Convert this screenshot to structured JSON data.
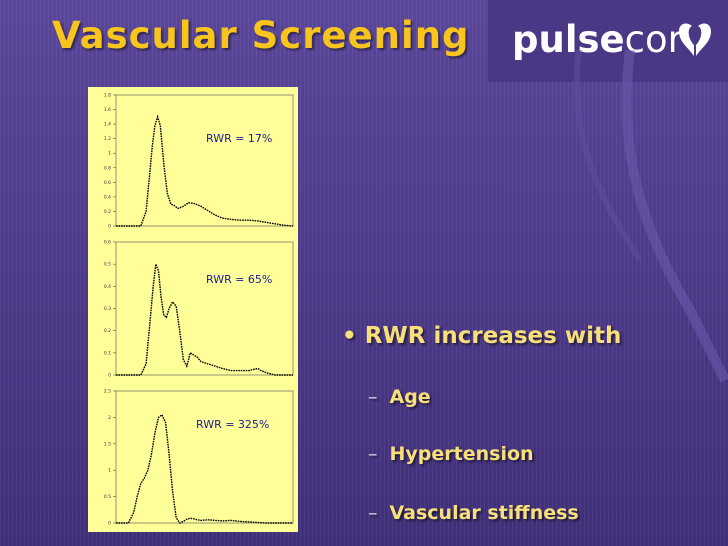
{
  "title": "Vascular Screening",
  "logo": {
    "bold": "pulse",
    "normal": "cor",
    "icon": "heart-leaf-icon"
  },
  "colors": {
    "background": "#4a3786",
    "title": "#f7c51c",
    "bullet": "#f7e07a",
    "chart_bg": "#ffff99",
    "line": "#000000"
  },
  "bullets": {
    "main": "RWR increases with",
    "marker": "•",
    "dash": "–",
    "items": [
      "Age",
      "Hypertension",
      "Vascular stiffness"
    ]
  },
  "chart_data": [
    {
      "type": "line",
      "annotation": "RWR = 17%",
      "ylim": [
        0,
        1.8
      ],
      "yticks": [
        "0",
        "0.2",
        "0.4",
        "0.6",
        "0.8",
        "1",
        "1.2",
        "1.4",
        "1.6",
        "1.8"
      ],
      "series": [
        {
          "x": [
            0,
            0.08,
            0.14,
            0.17,
            0.19,
            0.205,
            0.22,
            0.235,
            0.25,
            0.27,
            0.29,
            0.31,
            0.33,
            0.35,
            0.38,
            0.41,
            0.44,
            0.48,
            0.52,
            0.56,
            0.6,
            0.65,
            0.7,
            0.75,
            0.8,
            0.85,
            0.9,
            0.95,
            1
          ],
          "y": [
            0,
            0,
            0,
            0.2,
            0.7,
            1.1,
            1.38,
            1.5,
            1.38,
            0.85,
            0.45,
            0.3,
            0.28,
            0.24,
            0.27,
            0.32,
            0.31,
            0.27,
            0.21,
            0.15,
            0.11,
            0.09,
            0.08,
            0.08,
            0.07,
            0.05,
            0.03,
            0.01,
            0
          ]
        }
      ]
    },
    {
      "type": "line",
      "annotation": "RWR = 65%",
      "ylim": [
        0,
        0.6
      ],
      "yticks": [
        "0",
        "0.1",
        "0.2",
        "0.3",
        "0.4",
        "0.5",
        "0.6"
      ],
      "series": [
        {
          "x": [
            0,
            0.08,
            0.14,
            0.17,
            0.19,
            0.21,
            0.225,
            0.24,
            0.255,
            0.27,
            0.285,
            0.3,
            0.32,
            0.34,
            0.36,
            0.38,
            0.4,
            0.41,
            0.42,
            0.44,
            0.46,
            0.48,
            0.52,
            0.56,
            0.6,
            0.65,
            0.7,
            0.75,
            0.8,
            0.82,
            0.85,
            0.9,
            0.95,
            1
          ],
          "y": [
            0,
            0,
            0,
            0.05,
            0.22,
            0.4,
            0.5,
            0.47,
            0.35,
            0.27,
            0.26,
            0.3,
            0.33,
            0.31,
            0.2,
            0.07,
            0.04,
            0.07,
            0.1,
            0.09,
            0.08,
            0.06,
            0.05,
            0.04,
            0.03,
            0.02,
            0.02,
            0.02,
            0.03,
            0.02,
            0.01,
            0,
            0,
            0
          ]
        }
      ]
    },
    {
      "type": "line",
      "annotation": "RWR = 325%",
      "ylim": [
        0,
        2.5
      ],
      "yticks": [
        "0",
        "0.5",
        "1",
        "1.5",
        "2",
        "2.5"
      ],
      "series": [
        {
          "x": [
            0,
            0.07,
            0.1,
            0.12,
            0.14,
            0.16,
            0.18,
            0.2,
            0.22,
            0.24,
            0.26,
            0.28,
            0.3,
            0.32,
            0.34,
            0.36,
            0.38,
            0.4,
            0.42,
            0.44,
            0.46,
            0.48,
            0.52,
            0.56,
            0.6,
            0.65,
            0.7,
            0.75,
            0.8,
            0.85,
            0.9,
            0.95,
            1
          ],
          "y": [
            0,
            0,
            0.2,
            0.5,
            0.75,
            0.85,
            1,
            1.3,
            1.7,
            2,
            2.05,
            1.9,
            1.3,
            0.6,
            0.1,
            0,
            0.03,
            0.07,
            0.09,
            0.08,
            0.06,
            0.05,
            0.06,
            0.05,
            0.04,
            0.05,
            0.03,
            0.02,
            0.01,
            0,
            0,
            0,
            0
          ]
        }
      ]
    }
  ]
}
